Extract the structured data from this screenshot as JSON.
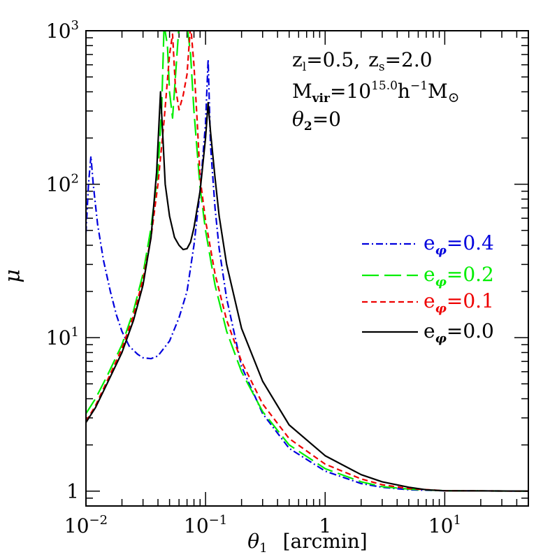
{
  "chart_data": {
    "type": "line",
    "xlabel_symbol": "θ",
    "xlabel_sub": "1",
    "xlabel_unit": "[arcmin]",
    "ylabel": "μ",
    "xscale": "log",
    "yscale": "log",
    "xlim": [
      0.01,
      50
    ],
    "ylim": [
      0.8,
      1000
    ],
    "xticks": [
      {
        "value": 0.01,
        "base": "10",
        "exp": "−2"
      },
      {
        "value": 0.1,
        "base": "10",
        "exp": "−1"
      },
      {
        "value": 1,
        "base": "1",
        "exp": ""
      },
      {
        "value": 10,
        "base": "10",
        "exp": "1"
      }
    ],
    "yticks": [
      {
        "value": 1,
        "base": "1",
        "exp": ""
      },
      {
        "value": 10,
        "base": "10",
        "exp": "1"
      },
      {
        "value": 100,
        "base": "10",
        "exp": "2"
      },
      {
        "value": 1000,
        "base": "10",
        "exp": "3"
      }
    ],
    "annotations": {
      "line1": {
        "z": "z",
        "l_sub": "l",
        "l_val": "=0.5,",
        "s_sub": "s",
        "s_val": "=2.0"
      },
      "line2": {
        "m": "M",
        "m_sub": "vir",
        "eq": "=10",
        "exp": "15.0",
        "h": "h",
        "h_exp": "−1",
        "m2": "M",
        "sun_sub": "⊙"
      },
      "line3": {
        "theta": "θ",
        "sub": "2",
        "val": "=0"
      }
    },
    "legend_position": "right-middle",
    "series": [
      {
        "name": "0.4",
        "label_base": "e",
        "label_sub": "φ",
        "label_val": "=0.4",
        "color": "#0000dd",
        "dash": "10,4,2,4",
        "points": [
          [
            0.01,
            48
          ],
          [
            0.0105,
            100
          ],
          [
            0.011,
            152
          ],
          [
            0.0115,
            100
          ],
          [
            0.0125,
            55
          ],
          [
            0.014,
            32
          ],
          [
            0.016,
            20
          ],
          [
            0.018,
            14
          ],
          [
            0.02,
            11
          ],
          [
            0.023,
            8.8
          ],
          [
            0.027,
            7.8
          ],
          [
            0.03,
            7.4
          ],
          [
            0.035,
            7.3
          ],
          [
            0.04,
            7.6
          ],
          [
            0.05,
            9.5
          ],
          [
            0.06,
            13.5
          ],
          [
            0.07,
            20
          ],
          [
            0.08,
            40
          ],
          [
            0.09,
            90
          ],
          [
            0.1,
            250
          ],
          [
            0.105,
            650
          ],
          [
            0.11,
            180
          ],
          [
            0.12,
            70
          ],
          [
            0.13,
            38
          ],
          [
            0.15,
            18
          ],
          [
            0.2,
            6.5
          ],
          [
            0.3,
            3.2
          ],
          [
            0.5,
            1.9
          ],
          [
            1,
            1.35
          ],
          [
            2,
            1.12
          ],
          [
            3,
            1.06
          ],
          [
            5,
            1.02
          ],
          [
            10,
            1.005
          ],
          [
            50,
            1.0
          ]
        ]
      },
      {
        "name": "0.2",
        "label_base": "e",
        "label_sub": "φ",
        "label_val": "=0.2",
        "color": "#00ee00",
        "dash": "24,8",
        "points": [
          [
            0.01,
            3.2
          ],
          [
            0.012,
            4.0
          ],
          [
            0.015,
            5.6
          ],
          [
            0.02,
            9
          ],
          [
            0.025,
            15
          ],
          [
            0.03,
            26
          ],
          [
            0.035,
            52
          ],
          [
            0.04,
            120
          ],
          [
            0.043,
            320
          ],
          [
            0.045,
            1100
          ],
          [
            0.048,
            800
          ],
          [
            0.05,
            400
          ],
          [
            0.053,
            270
          ],
          [
            0.056,
            500
          ],
          [
            0.06,
            1100
          ],
          [
            0.07,
            1100
          ],
          [
            0.075,
            700
          ],
          [
            0.08,
            300
          ],
          [
            0.09,
            95
          ],
          [
            0.1,
            50
          ],
          [
            0.12,
            22
          ],
          [
            0.15,
            11
          ],
          [
            0.2,
            6.0
          ],
          [
            0.3,
            3.3
          ],
          [
            0.5,
            2.0
          ],
          [
            1,
            1.4
          ],
          [
            2,
            1.15
          ],
          [
            3,
            1.07
          ],
          [
            5,
            1.03
          ],
          [
            10,
            1.005
          ],
          [
            50,
            1.0
          ]
        ]
      },
      {
        "name": "0.1",
        "label_base": "e",
        "label_sub": "φ",
        "label_val": "=0.1",
        "color": "#ee0000",
        "dash": "8,5",
        "points": [
          [
            0.01,
            2.85
          ],
          [
            0.012,
            3.6
          ],
          [
            0.015,
            5.2
          ],
          [
            0.02,
            8.5
          ],
          [
            0.025,
            14
          ],
          [
            0.03,
            24
          ],
          [
            0.035,
            45
          ],
          [
            0.04,
            100
          ],
          [
            0.045,
            260
          ],
          [
            0.05,
            700
          ],
          [
            0.053,
            950
          ],
          [
            0.056,
            430
          ],
          [
            0.06,
            305
          ],
          [
            0.065,
            380
          ],
          [
            0.07,
            520
          ],
          [
            0.075,
            1100
          ],
          [
            0.08,
            600
          ],
          [
            0.085,
            260
          ],
          [
            0.09,
            110
          ],
          [
            0.1,
            58
          ],
          [
            0.12,
            26
          ],
          [
            0.15,
            13
          ],
          [
            0.2,
            7.0
          ],
          [
            0.3,
            3.7
          ],
          [
            0.5,
            2.2
          ],
          [
            1,
            1.5
          ],
          [
            2,
            1.2
          ],
          [
            3,
            1.1
          ],
          [
            5,
            1.04
          ],
          [
            10,
            1.005
          ],
          [
            50,
            1.0
          ]
        ]
      },
      {
        "name": "0.0",
        "label_base": "e",
        "label_sub": "φ",
        "label_val": "=0.0",
        "color": "#000000",
        "dash": "",
        "points": [
          [
            0.01,
            2.8
          ],
          [
            0.012,
            3.5
          ],
          [
            0.015,
            5
          ],
          [
            0.02,
            8
          ],
          [
            0.025,
            13
          ],
          [
            0.03,
            22
          ],
          [
            0.035,
            45
          ],
          [
            0.039,
            120
          ],
          [
            0.042,
            400
          ],
          [
            0.044,
            200
          ],
          [
            0.046,
            100
          ],
          [
            0.05,
            62
          ],
          [
            0.055,
            45
          ],
          [
            0.06,
            40
          ],
          [
            0.065,
            37.5
          ],
          [
            0.07,
            38
          ],
          [
            0.075,
            42
          ],
          [
            0.08,
            52
          ],
          [
            0.09,
            90
          ],
          [
            0.1,
            200
          ],
          [
            0.105,
            340
          ],
          [
            0.11,
            220
          ],
          [
            0.12,
            110
          ],
          [
            0.13,
            62
          ],
          [
            0.15,
            30
          ],
          [
            0.2,
            11.5
          ],
          [
            0.3,
            5.2
          ],
          [
            0.5,
            2.7
          ],
          [
            1,
            1.7
          ],
          [
            2,
            1.28
          ],
          [
            3,
            1.15
          ],
          [
            5,
            1.06
          ],
          [
            7,
            1.02
          ],
          [
            10,
            1.005
          ],
          [
            50,
            1.0
          ]
        ]
      }
    ]
  }
}
